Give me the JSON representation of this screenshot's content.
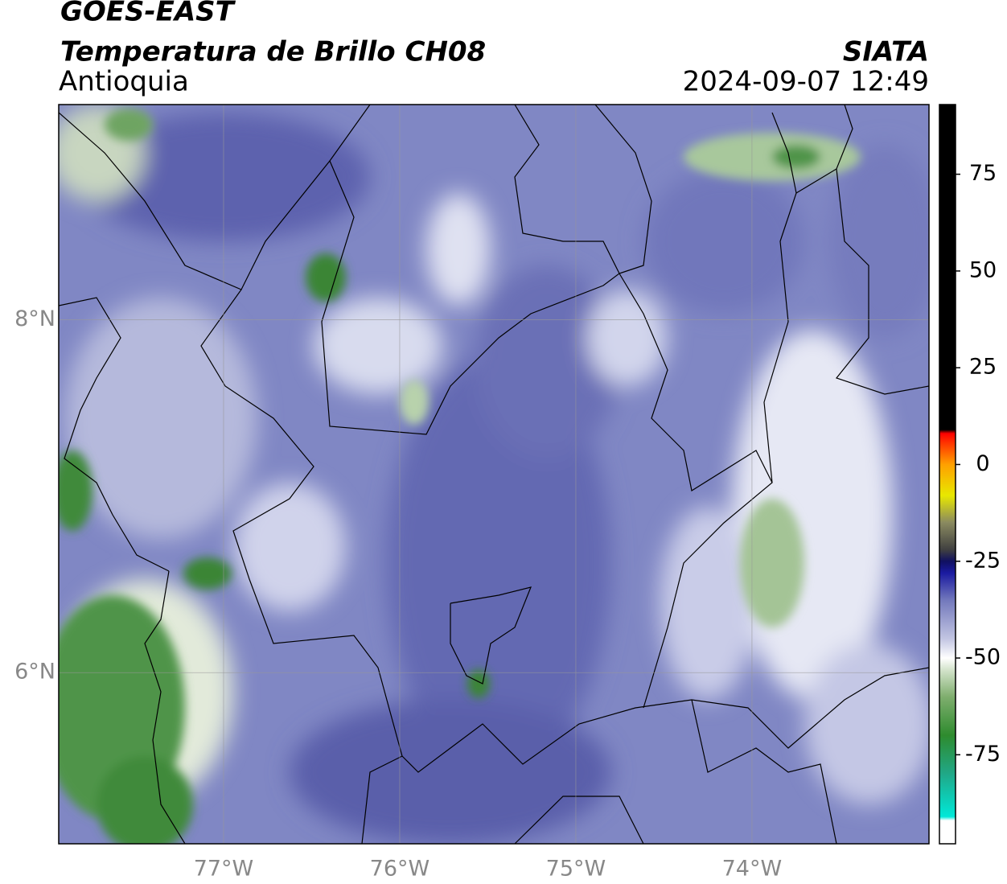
{
  "header": {
    "title": "GOES-EAST",
    "subtitle": "Temperatura de Brillo CH08",
    "region": "Antioquia",
    "source": "SIATA",
    "timestamp": "2024-09-07 12:49"
  },
  "map": {
    "type": "map",
    "xlim": [
      -77.936,
      -72.995
    ],
    "ylim": [
      5.03,
      9.22
    ],
    "xticks": [
      {
        "value": -77,
        "label": "77°W"
      },
      {
        "value": -76,
        "label": "76°W"
      },
      {
        "value": -75,
        "label": "75°W"
      },
      {
        "value": -74,
        "label": "74°W"
      }
    ],
    "yticks": [
      {
        "value": 8,
        "label": "8°N"
      },
      {
        "value": 6,
        "label": "6°N"
      }
    ],
    "grid": true,
    "colorbar": {
      "lim": [
        -98,
        93
      ],
      "ticks": [
        75,
        50,
        25,
        0,
        -25,
        -50,
        -75
      ],
      "stops": [
        {
          "value": -98,
          "color": "#ffffff"
        },
        {
          "value": -92,
          "color": "#ffffff"
        },
        {
          "value": -91,
          "color": "#00e8d8"
        },
        {
          "value": -80,
          "color": "#20a888"
        },
        {
          "value": -70,
          "color": "#2e8b2e"
        },
        {
          "value": -60,
          "color": "#7fae6e"
        },
        {
          "value": -53,
          "color": "#d4e4cc"
        },
        {
          "value": -50,
          "color": "#ffffff"
        },
        {
          "value": -45,
          "color": "#c2c5e2"
        },
        {
          "value": -35,
          "color": "#7278bc"
        },
        {
          "value": -28,
          "color": "#1a1aa0"
        },
        {
          "value": -25,
          "color": "#101060"
        },
        {
          "value": -22,
          "color": "#404040"
        },
        {
          "value": -15,
          "color": "#8a8a60"
        },
        {
          "value": -8,
          "color": "#e8e800"
        },
        {
          "value": 0,
          "color": "#ffa000"
        },
        {
          "value": 5,
          "color": "#ff4000"
        },
        {
          "value": 8,
          "color": "#ff0000"
        },
        {
          "value": 9,
          "color": "#000000"
        },
        {
          "value": 93,
          "color": "#000000"
        }
      ]
    }
  }
}
